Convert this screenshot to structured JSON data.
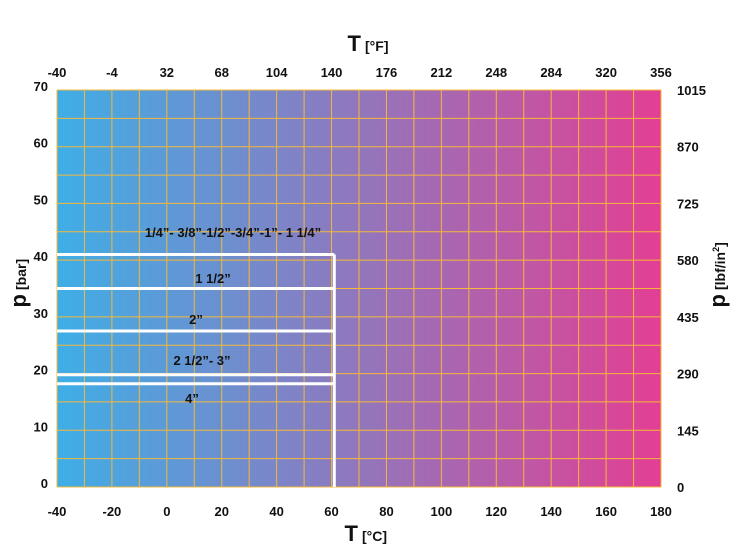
{
  "chart_data": {
    "type": "area",
    "title": "",
    "top_axis": {
      "symbol": "T",
      "unit": "[°F]",
      "ticks": [
        "-40",
        "-4",
        "32",
        "68",
        "104",
        "140",
        "176",
        "212",
        "248",
        "284",
        "320",
        "356"
      ]
    },
    "bottom_axis": {
      "symbol": "T",
      "unit": "[°C]",
      "ticks": [
        "-40",
        "-20",
        "0",
        "20",
        "40",
        "60",
        "80",
        "100",
        "120",
        "140",
        "160",
        "180"
      ]
    },
    "left_axis": {
      "symbol": "p",
      "unit": "[bar]",
      "ticks": [
        "0",
        "10",
        "20",
        "30",
        "40",
        "50",
        "60",
        "70"
      ]
    },
    "right_axis": {
      "symbol": "p",
      "unit_prefix": "[lbf/in",
      "unit_sup": "2",
      "unit_suffix": "]",
      "ticks": [
        "0",
        "145",
        "290",
        "435",
        "580",
        "725",
        "870",
        "1015"
      ]
    },
    "xlim": [
      -40,
      180
    ],
    "ylim": [
      0,
      70
    ],
    "grid": true,
    "background_gradient": [
      "#3faee6",
      "#e33f93"
    ],
    "grid_color": "#f5b83a",
    "limit_color": "#ffffff",
    "series": [
      {
        "name": "1/4”- 3/8”-1/2”-3/4”-1”- 1 1/4”",
        "t_max": 61,
        "p_max": 41
      },
      {
        "name": "1 1/2”",
        "t_max": 61,
        "p_max": 35
      },
      {
        "name": "2”",
        "t_max": 61,
        "p_max": 27.5
      },
      {
        "name": "2 1/2”- 3”",
        "t_max": 61,
        "p_max": 19.8
      },
      {
        "name": "4”",
        "t_max": 61,
        "p_max": 18.2
      }
    ]
  }
}
